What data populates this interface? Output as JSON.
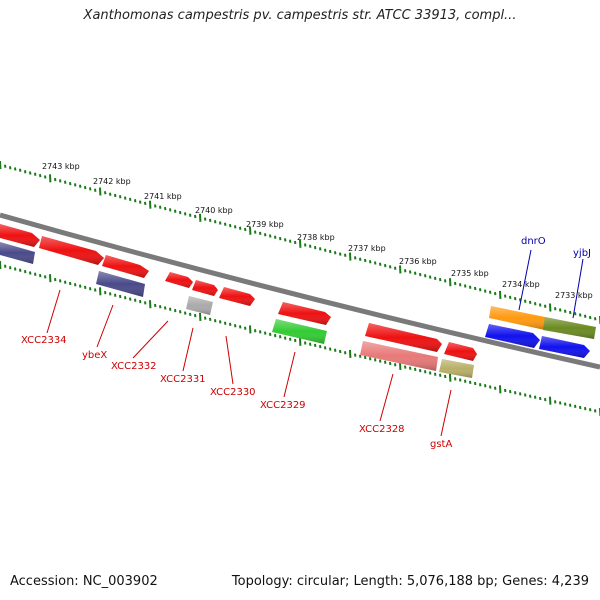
{
  "title": "Xanthomonas campestris pv. campestris str. ATCC 33913, compl...",
  "footer": {
    "accession": "Accession: NC_003902",
    "summary": "Topology: circular; Length: 5,076,188 bp; Genes: 4,239"
  },
  "scale_labels": [
    "2743 kbp",
    "2742 kbp",
    "2741 kbp",
    "2740 kbp",
    "2739 kbp",
    "2738 kbp",
    "2737 kbp",
    "2736 kbp",
    "2735 kbp",
    "2734 kbp",
    "2733 kbp"
  ],
  "gene_labels": [
    {
      "text": "XCC2334",
      "color": "red"
    },
    {
      "text": "ybeX",
      "color": "red"
    },
    {
      "text": "XCC2332",
      "color": "red"
    },
    {
      "text": "XCC2331",
      "color": "red"
    },
    {
      "text": "XCC2330",
      "color": "red"
    },
    {
      "text": "XCC2329",
      "color": "red"
    },
    {
      "text": "XCC2328",
      "color": "red"
    },
    {
      "text": "gstA",
      "color": "red"
    },
    {
      "text": "dnrO",
      "color": "blue"
    },
    {
      "text": "yjbJ",
      "color": "blue"
    }
  ],
  "colors": {
    "backbone": "#7a7a7a",
    "ticks": "#1a7a1a",
    "gene_red": "#ee1111",
    "gene_navy": "#4a4a8a",
    "gene_gray": "#aaaaaa",
    "gene_green": "#33cc33",
    "gene_pink": "#e87878",
    "gene_olive": "#b8b068",
    "gene_orange": "#ff9911",
    "gene_darkolive": "#6b8a22",
    "gene_blue": "#1111ee",
    "label_red": "#cc0000",
    "label_blue": "#0000aa"
  }
}
